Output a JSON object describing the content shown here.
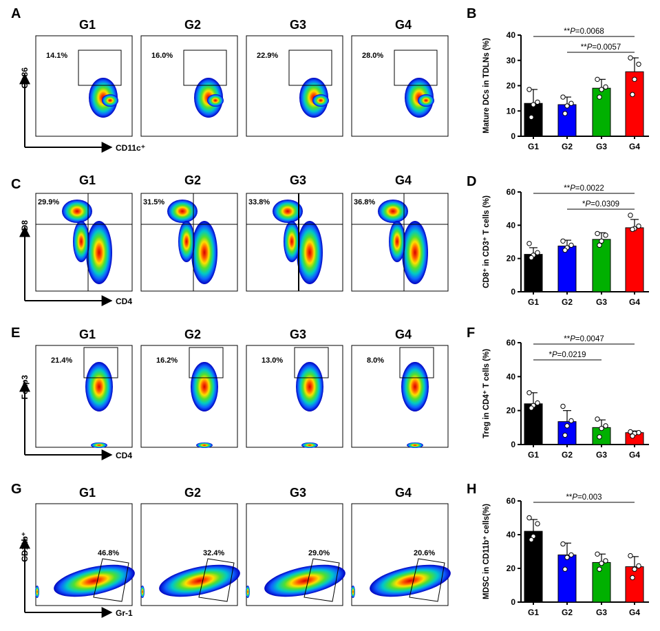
{
  "colors": {
    "G1": "#000000",
    "G2": "#0000ff",
    "G3": "#00b000",
    "G4": "#ff0000"
  },
  "flow_panels": [
    {
      "label": "A",
      "groups": [
        "G1",
        "G2",
        "G3",
        "G4"
      ],
      "percents": [
        "14.1%",
        "16.0%",
        "22.9%",
        "28.0%"
      ],
      "x_axis": "CD11c⁺",
      "y_axis": "CD86",
      "gate": "rect"
    },
    {
      "label": "C",
      "groups": [
        "G1",
        "G2",
        "G3",
        "G4"
      ],
      "percents": [
        "29.9%",
        "31.5%",
        "33.8%",
        "36.8%"
      ],
      "x_axis": "CD4",
      "y_axis": "CD8",
      "gate": "quad"
    },
    {
      "label": "E",
      "groups": [
        "G1",
        "G2",
        "G3",
        "G4"
      ],
      "percents": [
        "21.4%",
        "16.2%",
        "13.0%",
        "8.0%"
      ],
      "x_axis": "CD4",
      "y_axis": "Foxp3",
      "gate": "rect"
    },
    {
      "label": "G",
      "groups": [
        "G1",
        "G2",
        "G3",
        "G4"
      ],
      "percents": [
        "46.8%",
        "32.4%",
        "29.0%",
        "20.6%"
      ],
      "x_axis": "Gr-1",
      "y_axis": "CD11b⁺",
      "gate": "poly"
    }
  ],
  "chart_data": [
    {
      "type": "bar",
      "panel": "B",
      "categories": [
        "G1",
        "G2",
        "G3",
        "G4"
      ],
      "values": [
        13,
        12.5,
        19,
        25.5
      ],
      "errors": [
        5.5,
        3,
        3.5,
        5.5
      ],
      "points": [
        [
          18.5,
          13.5,
          12.5,
          7.5
        ],
        [
          15.5,
          13,
          12,
          9
        ],
        [
          22.5,
          19.5,
          18.5,
          15.5
        ],
        [
          31,
          28.5,
          22.5,
          16.5
        ]
      ],
      "ylabel": "Mature DCs in TDLNs (%)",
      "ylim": [
        0,
        40
      ],
      "yticks": [
        0,
        10,
        20,
        30,
        40
      ],
      "comparisons": [
        {
          "from": "G1",
          "to": "G4",
          "stars": "**",
          "p": "P=0.0068"
        },
        {
          "from": "G2",
          "to": "G4",
          "stars": "**",
          "p": "P=0.0057"
        }
      ]
    },
    {
      "type": "bar",
      "panel": "D",
      "categories": [
        "G1",
        "G2",
        "G3",
        "G4"
      ],
      "values": [
        22.5,
        27.5,
        31.5,
        38.5
      ],
      "errors": [
        4,
        3.5,
        4,
        5
      ],
      "points": [
        [
          29,
          23.5,
          22,
          20.5
        ],
        [
          30.5,
          28,
          26.5,
          25
        ],
        [
          35,
          34,
          30.5,
          28
        ],
        [
          46,
          39.5,
          38,
          37.5
        ]
      ],
      "ylabel": "CD8⁺ in CD3⁺ T cells (%)",
      "ylim": [
        0,
        60
      ],
      "yticks": [
        0,
        20,
        40,
        60
      ],
      "comparisons": [
        {
          "from": "G1",
          "to": "G4",
          "stars": "**",
          "p": "P=0.0022"
        },
        {
          "from": "G2",
          "to": "G4",
          "stars": "*",
          "p": "P=0.0309"
        }
      ]
    },
    {
      "type": "bar",
      "panel": "F",
      "categories": [
        "G1",
        "G2",
        "G3",
        "G4"
      ],
      "values": [
        24,
        13.5,
        10,
        7
      ],
      "errors": [
        6.5,
        6.5,
        4.5,
        1
      ],
      "points": [
        [
          30.5,
          24.5,
          23,
          21.5
        ],
        [
          22.5,
          14,
          11,
          5.5
        ],
        [
          15,
          11,
          9.5,
          4.5
        ],
        [
          7.5,
          7,
          6.5,
          5
        ]
      ],
      "ylabel": "Treg in CD4⁺ T cells (%)",
      "ylim": [
        0,
        60
      ],
      "yticks": [
        0,
        20,
        40,
        60
      ],
      "comparisons": [
        {
          "from": "G1",
          "to": "G4",
          "stars": "**",
          "p": "P=0.0047"
        },
        {
          "from": "G1",
          "to": "G3",
          "stars": "*",
          "p": "P=0.0219"
        }
      ]
    },
    {
      "type": "bar",
      "panel": "H",
      "categories": [
        "G1",
        "G2",
        "G3",
        "G4"
      ],
      "values": [
        42,
        28,
        23.5,
        21
      ],
      "errors": [
        7,
        7,
        5,
        6
      ],
      "points": [
        [
          50,
          46.5,
          39,
          37
        ],
        [
          34.5,
          28,
          26.5,
          19.5
        ],
        [
          28.5,
          24.5,
          23,
          19.5
        ],
        [
          27.5,
          21.5,
          19.5,
          14.5
        ]
      ],
      "ylabel": "MDSC in CD11b⁺ cells(%)",
      "ylim": [
        0,
        60
      ],
      "yticks": [
        0,
        20,
        40,
        60
      ],
      "comparisons": [
        {
          "from": "G1",
          "to": "G4",
          "stars": "**",
          "p": "P=0.003"
        }
      ]
    }
  ]
}
